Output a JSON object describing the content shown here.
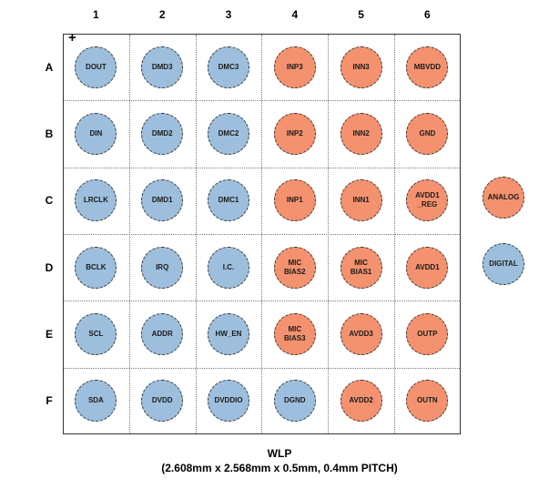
{
  "columns": [
    "1",
    "2",
    "3",
    "4",
    "5",
    "6"
  ],
  "rows": [
    "A",
    "B",
    "C",
    "D",
    "E",
    "F"
  ],
  "pin1_marker": "+",
  "colors": {
    "digital": "#9dbfdd",
    "analog": "#f4926f"
  },
  "balls": [
    [
      "DOUT",
      "DMD3",
      "DMC3",
      "INP3",
      "INN3",
      "MBVDD"
    ],
    [
      "DIN",
      "DMD2",
      "DMC2",
      "INP2",
      "INN2",
      "GND"
    ],
    [
      "LRCLK",
      "DMD1",
      "DMC1",
      "INP1",
      "INN1",
      "AVDD1\n_REG"
    ],
    [
      "BCLK",
      "IRQ",
      "I.C.",
      "MIC\nBIAS2",
      "MIC\nBIAS1",
      "AVDD1"
    ],
    [
      "SCL",
      "ADDR",
      "HW_EN",
      "MIC\nBIAS3",
      "AVDD3",
      "OUTP"
    ],
    [
      "SDA",
      "DVDD",
      "DVDDIO",
      "DGND",
      "AVDD2",
      "OUTN"
    ]
  ],
  "ball_types": [
    [
      "digital",
      "digital",
      "digital",
      "analog",
      "analog",
      "analog"
    ],
    [
      "digital",
      "digital",
      "digital",
      "analog",
      "analog",
      "analog"
    ],
    [
      "digital",
      "digital",
      "digital",
      "analog",
      "analog",
      "analog"
    ],
    [
      "digital",
      "digital",
      "digital",
      "analog",
      "analog",
      "analog"
    ],
    [
      "digital",
      "digital",
      "digital",
      "analog",
      "analog",
      "analog"
    ],
    [
      "digital",
      "digital",
      "digital",
      "digital",
      "analog",
      "analog"
    ]
  ],
  "legend": {
    "analog": "ANALOG",
    "digital": "DIGITAL"
  },
  "title": "WLP",
  "subtitle": "(2.608mm x 2.568mm x 0.5mm, 0.4mm PITCH)"
}
